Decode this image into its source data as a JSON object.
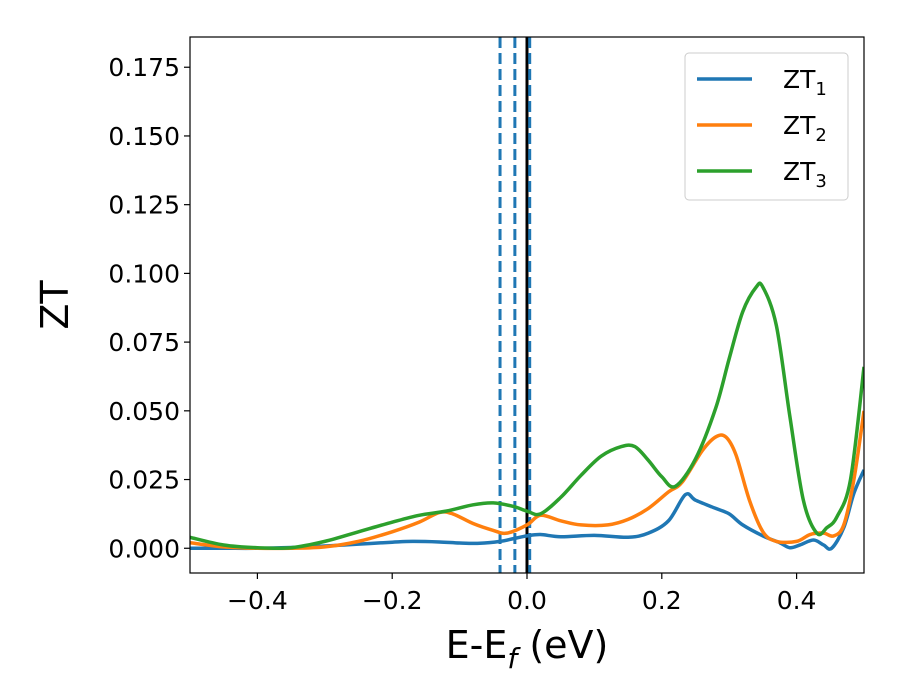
{
  "chart_data": {
    "type": "line",
    "xlabel": {
      "main": "E-E",
      "sub": "f",
      "unit": " (eV)"
    },
    "ylabel": "ZT",
    "xlim": [
      -0.5,
      0.5
    ],
    "ylim": [
      -0.009,
      0.186
    ],
    "xticks": [
      -0.4,
      -0.2,
      0.0,
      0.2,
      0.4
    ],
    "xtick_labels": [
      "−0.4",
      "−0.2",
      "0.0",
      "0.2",
      "0.4"
    ],
    "yticks": [
      0.0,
      0.025,
      0.05,
      0.075,
      0.1,
      0.125,
      0.15,
      0.175
    ],
    "ytick_labels": [
      "0.000",
      "0.025",
      "0.050",
      "0.075",
      "0.100",
      "0.125",
      "0.150",
      "0.175"
    ],
    "grid": false,
    "legend_position": "top-right",
    "vlines": [
      {
        "x": -0.04,
        "color": "#1f77b4",
        "style": "dashed"
      },
      {
        "x": -0.018,
        "color": "#1f77b4",
        "style": "dashed"
      },
      {
        "x": 0.0,
        "color": "#000000",
        "style": "solid"
      },
      {
        "x": 0.004,
        "color": "#1f77b4",
        "style": "dashed"
      }
    ],
    "series": [
      {
        "name": "ZT",
        "name_sub": "1",
        "color": "#1f77b4",
        "points": [
          [
            -0.5,
            0.0
          ],
          [
            -0.45,
            0.0
          ],
          [
            -0.4,
            0.0
          ],
          [
            -0.35,
            0.0003
          ],
          [
            -0.3,
            0.0008
          ],
          [
            -0.25,
            0.0015
          ],
          [
            -0.2,
            0.0022
          ],
          [
            -0.17,
            0.0025
          ],
          [
            -0.13,
            0.0023
          ],
          [
            -0.1,
            0.0019
          ],
          [
            -0.07,
            0.0018
          ],
          [
            -0.04,
            0.0025
          ],
          [
            -0.02,
            0.0035
          ],
          [
            0.0,
            0.0045
          ],
          [
            0.02,
            0.005
          ],
          [
            0.05,
            0.0042
          ],
          [
            0.1,
            0.0047
          ],
          [
            0.15,
            0.004
          ],
          [
            0.18,
            0.0055
          ],
          [
            0.21,
            0.01
          ],
          [
            0.235,
            0.0195
          ],
          [
            0.25,
            0.0175
          ],
          [
            0.28,
            0.0145
          ],
          [
            0.3,
            0.0125
          ],
          [
            0.32,
            0.0085
          ],
          [
            0.35,
            0.0045
          ],
          [
            0.375,
            0.002
          ],
          [
            0.39,
            0.0002
          ],
          [
            0.405,
            0.0012
          ],
          [
            0.425,
            0.003
          ],
          [
            0.44,
            0.0012
          ],
          [
            0.452,
            0.0
          ],
          [
            0.47,
            0.0075
          ],
          [
            0.485,
            0.02
          ],
          [
            0.5,
            0.0285
          ]
        ]
      },
      {
        "name": "ZT",
        "name_sub": "2",
        "color": "#ff7f0e",
        "points": [
          [
            -0.5,
            0.002
          ],
          [
            -0.45,
            0.0005
          ],
          [
            -0.4,
            0.0
          ],
          [
            -0.35,
            0.0
          ],
          [
            -0.3,
            0.0005
          ],
          [
            -0.25,
            0.0025
          ],
          [
            -0.2,
            0.006
          ],
          [
            -0.16,
            0.0095
          ],
          [
            -0.13,
            0.013
          ],
          [
            -0.11,
            0.0125
          ],
          [
            -0.08,
            0.009
          ],
          [
            -0.05,
            0.0065
          ],
          [
            -0.03,
            0.0055
          ],
          [
            0.0,
            0.0085
          ],
          [
            0.02,
            0.012
          ],
          [
            0.05,
            0.01
          ],
          [
            0.08,
            0.0085
          ],
          [
            0.12,
            0.0085
          ],
          [
            0.15,
            0.0105
          ],
          [
            0.18,
            0.0145
          ],
          [
            0.21,
            0.0205
          ],
          [
            0.23,
            0.024
          ],
          [
            0.26,
            0.0355
          ],
          [
            0.28,
            0.0405
          ],
          [
            0.295,
            0.0405
          ],
          [
            0.31,
            0.034
          ],
          [
            0.33,
            0.0175
          ],
          [
            0.35,
            0.006
          ],
          [
            0.37,
            0.0025
          ],
          [
            0.4,
            0.0025
          ],
          [
            0.42,
            0.005
          ],
          [
            0.44,
            0.0055
          ],
          [
            0.455,
            0.0045
          ],
          [
            0.47,
            0.0085
          ],
          [
            0.485,
            0.025
          ],
          [
            0.5,
            0.05
          ]
        ]
      },
      {
        "name": "ZT",
        "name_sub": "3",
        "color": "#2ca02c",
        "points": [
          [
            -0.5,
            0.004
          ],
          [
            -0.45,
            0.0012
          ],
          [
            -0.4,
            0.0002
          ],
          [
            -0.35,
            0.0002
          ],
          [
            -0.3,
            0.0025
          ],
          [
            -0.25,
            0.006
          ],
          [
            -0.2,
            0.0095
          ],
          [
            -0.16,
            0.012
          ],
          [
            -0.12,
            0.0135
          ],
          [
            -0.08,
            0.0158
          ],
          [
            -0.05,
            0.0165
          ],
          [
            -0.02,
            0.0152
          ],
          [
            0.0,
            0.0135
          ],
          [
            0.02,
            0.0125
          ],
          [
            0.05,
            0.0185
          ],
          [
            0.08,
            0.0265
          ],
          [
            0.11,
            0.0335
          ],
          [
            0.14,
            0.037
          ],
          [
            0.16,
            0.037
          ],
          [
            0.18,
            0.032
          ],
          [
            0.2,
            0.026
          ],
          [
            0.22,
            0.0225
          ],
          [
            0.25,
            0.0325
          ],
          [
            0.28,
            0.051
          ],
          [
            0.3,
            0.069
          ],
          [
            0.32,
            0.086
          ],
          [
            0.34,
            0.095
          ],
          [
            0.35,
            0.095
          ],
          [
            0.37,
            0.081
          ],
          [
            0.39,
            0.048
          ],
          [
            0.41,
            0.0175
          ],
          [
            0.43,
            0.0055
          ],
          [
            0.445,
            0.0075
          ],
          [
            0.46,
            0.0115
          ],
          [
            0.48,
            0.025
          ],
          [
            0.5,
            0.066
          ]
        ]
      }
    ]
  }
}
